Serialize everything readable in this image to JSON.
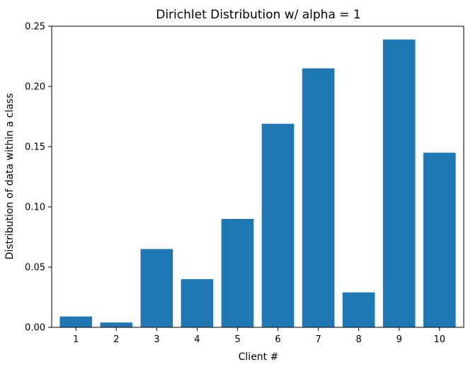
{
  "chart_data": {
    "type": "bar",
    "title": "Dirichlet Distribution w/ alpha = 1",
    "xlabel": "Client #",
    "ylabel": "Distribution of data within a class",
    "categories": [
      "1",
      "2",
      "3",
      "4",
      "5",
      "6",
      "7",
      "8",
      "9",
      "10"
    ],
    "values": [
      0.009,
      0.004,
      0.065,
      0.04,
      0.09,
      0.169,
      0.215,
      0.029,
      0.239,
      0.145
    ],
    "ylim": [
      0,
      0.25
    ],
    "yticks": [
      "0.00",
      "0.05",
      "0.10",
      "0.15",
      "0.20",
      "0.25"
    ],
    "grid": false,
    "bar_color": "#1f77b4"
  }
}
